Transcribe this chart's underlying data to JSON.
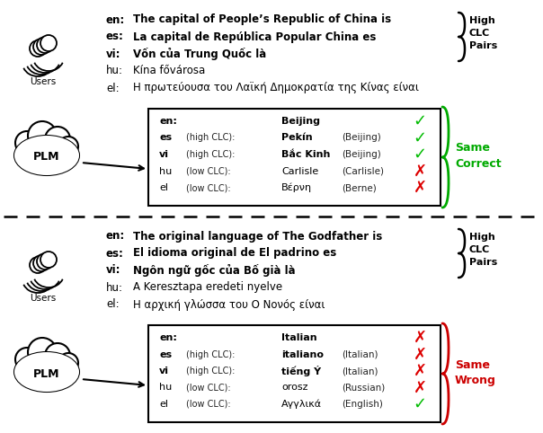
{
  "bg_color": "#ffffff",
  "panel1": {
    "query_lines": [
      {
        "lang": "en:",
        "text": "The capital of People’s Republic of China is",
        "bold": true
      },
      {
        "lang": "es:",
        "text": "La capital de República Popular China es",
        "bold": true
      },
      {
        "lang": "vi:",
        "text": "Vốn của Trung Quốc là",
        "bold": true
      },
      {
        "lang": "hu:",
        "text": "Kína fővárosa",
        "bold": false
      },
      {
        "lang": "el:",
        "text": "Η πρωτεύουσα του Λαϊκή Δημοκρατία της Κίνας είναι",
        "bold": false
      }
    ],
    "response_rows": [
      {
        "lang": "en:",
        "clc": "",
        "answer": "Beijing",
        "trans": "",
        "mark": "check_green",
        "bold_answer": true
      },
      {
        "lang": "es",
        "clc": "(high CLC):",
        "answer": "Pekín",
        "trans": "(Beijing)",
        "mark": "check_green",
        "bold_answer": true
      },
      {
        "lang": "vi",
        "clc": "(high CLC):",
        "answer": "Bắc Kinh",
        "trans": "(Beijing)",
        "mark": "check_green",
        "bold_answer": true
      },
      {
        "lang": "hu",
        "clc": "(low CLC):",
        "answer": "Carlisle",
        "trans": "(Carlisle)",
        "mark": "cross_red",
        "bold_answer": false
      },
      {
        "lang": "el",
        "clc": "(low CLC):",
        "answer": "Βέρνη",
        "trans": "(Berne)",
        "mark": "cross_red",
        "bold_answer": false
      }
    ],
    "label_color": "#00aa00",
    "label_text": [
      "Same",
      "Correct"
    ]
  },
  "panel2": {
    "query_lines": [
      {
        "lang": "en:",
        "text": "The original language of The Godfather is",
        "bold": true
      },
      {
        "lang": "es:",
        "text": "El idioma original de El padrino es",
        "bold": true
      },
      {
        "lang": "vi:",
        "text": "Ngôn ngữ gốc của Bố già là",
        "bold": true
      },
      {
        "lang": "hu:",
        "text": "A Keresztapa eredeti nyelve",
        "bold": false
      },
      {
        "lang": "el:",
        "text": "Η αρχική γλώσσα του Ο Νονός είναι",
        "bold": false
      }
    ],
    "response_rows": [
      {
        "lang": "en:",
        "clc": "",
        "answer": "Italian",
        "trans": "",
        "mark": "cross_red",
        "bold_answer": true
      },
      {
        "lang": "es",
        "clc": "(high CLC):",
        "answer": "italiano",
        "trans": "(Italian)",
        "mark": "cross_red",
        "bold_answer": true
      },
      {
        "lang": "vi",
        "clc": "(high CLC):",
        "answer": "tiếng Ý",
        "trans": "(Italian)",
        "mark": "cross_red",
        "bold_answer": true
      },
      {
        "lang": "hu",
        "clc": "(low CLC):",
        "answer": "orosz",
        "trans": "(Russian)",
        "mark": "cross_red",
        "bold_answer": false
      },
      {
        "lang": "el",
        "clc": "(low CLC):",
        "answer": "Αγγλικά",
        "trans": "(English)",
        "mark": "check_green",
        "bold_answer": false
      }
    ],
    "label_color": "#cc0000",
    "label_text": [
      "Same",
      "Wrong"
    ]
  }
}
